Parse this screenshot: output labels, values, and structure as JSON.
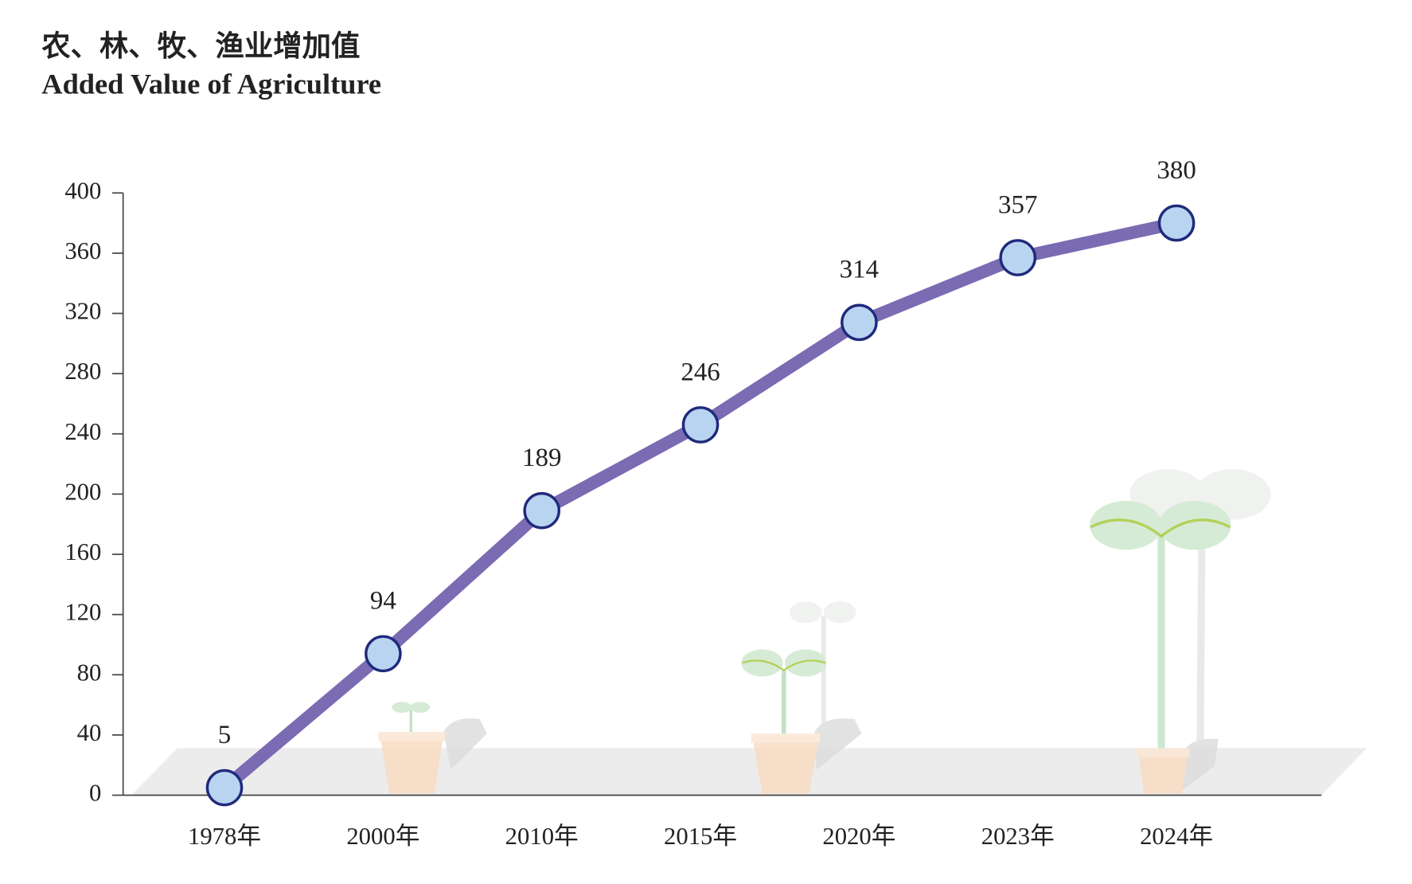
{
  "chart_data": {
    "type": "line",
    "title": "农、林、牧、渔业增加值",
    "subtitle": "Added Value of Agriculture",
    "categories": [
      "1978年",
      "2000年",
      "2010年",
      "2015年",
      "2020年",
      "2023年",
      "2024年"
    ],
    "values": [
      5,
      94,
      189,
      246,
      314,
      357,
      380
    ],
    "color": "#7a6bb3",
    "marker_fill": "#b9d4f0",
    "marker_stroke": "#1f2a7c",
    "ylim": [
      0,
      400
    ],
    "yticks": [
      0,
      40,
      80,
      120,
      160,
      200,
      240,
      280,
      320,
      360,
      400
    ],
    "grid": false
  }
}
